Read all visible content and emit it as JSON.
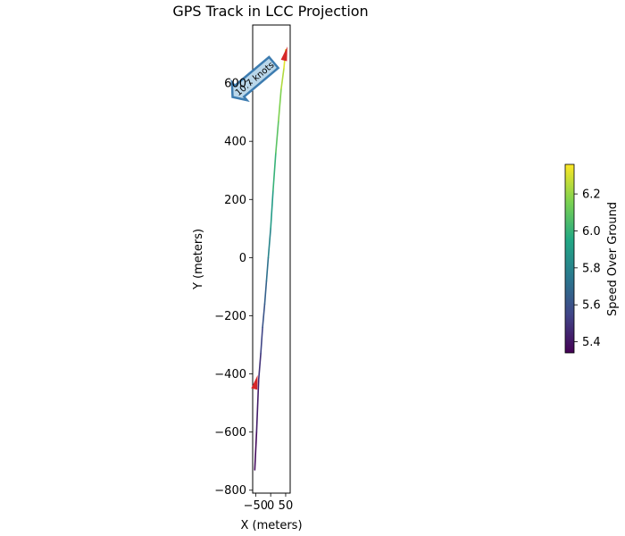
{
  "chart_data": {
    "type": "line",
    "title": "GPS Track in LCC Projection",
    "xlabel": "X (meters)",
    "ylabel": "Y (meters)",
    "xlim": [
      -60,
      65
    ],
    "ylim": [
      -810,
      800
    ],
    "x_ticks": [
      -50,
      0,
      50
    ],
    "x_tick_labels": [
      "−50",
      "0",
      "50"
    ],
    "y_ticks": [
      -800,
      -600,
      -400,
      -200,
      0,
      200,
      400,
      600
    ],
    "y_tick_labels": [
      "−800",
      "−600",
      "−400",
      "−200",
      "0",
      "200",
      "400",
      "600"
    ],
    "grid": false,
    "colormap": "viridis",
    "track": {
      "x": [
        -53,
        -47,
        -40,
        -33,
        -27,
        -20,
        -14,
        -8,
        0,
        8,
        17,
        26,
        35,
        44,
        50
      ],
      "y": [
        -730,
        -600,
        -420,
        -330,
        -240,
        -160,
        -80,
        0,
        100,
        230,
        360,
        470,
        580,
        650,
        715
      ],
      "speed": [
        5.34,
        5.4,
        5.45,
        5.52,
        5.58,
        5.63,
        5.68,
        5.75,
        5.85,
        5.95,
        6.05,
        6.12,
        6.2,
        6.28,
        6.35
      ]
    },
    "direction_arrows": [
      {
        "x": -52,
        "y": -440,
        "color": "#d62728"
      },
      {
        "x": 47,
        "y": 690,
        "color": "#d62728"
      }
    ],
    "annotation": {
      "text": "10.7 knots",
      "x": -15,
      "y": 625
    },
    "colorbar": {
      "label": "Speed Over Ground",
      "range": [
        5.34,
        6.36
      ],
      "ticks": [
        5.4,
        5.6,
        5.8,
        6.0,
        6.2
      ],
      "tick_labels": [
        "5.4",
        "5.6",
        "5.8",
        "6.0",
        "6.2"
      ]
    }
  }
}
